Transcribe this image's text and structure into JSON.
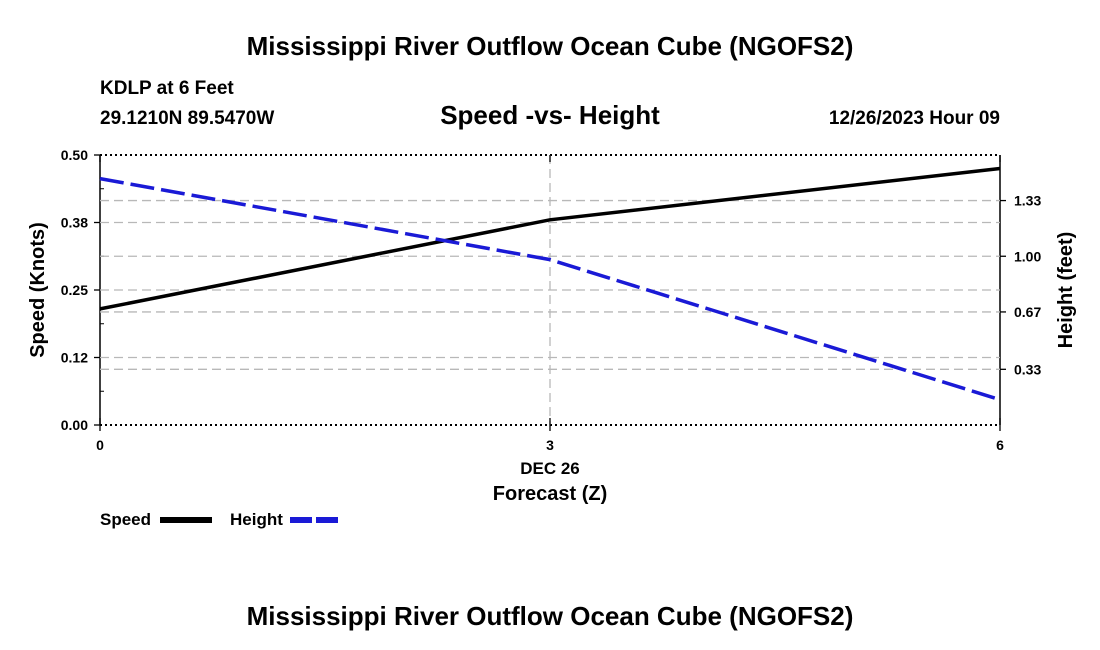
{
  "page": {
    "title": "Mississippi River Outflow Ocean Cube (NGOFS2)",
    "footer_title": "Mississippi River Outflow Ocean Cube (NGOFS2)",
    "station_line": "KDLP at 6 Feet",
    "coord_line": "29.1210N  89.5470W",
    "date_line": "12/26/2023 Hour 09"
  },
  "chart_data": {
    "type": "line",
    "title": "Speed -vs- Height",
    "xlabel": "Forecast (Z)",
    "x_date_label": "DEC 26",
    "x": [
      0,
      3,
      6
    ],
    "x_tick_labels": [
      "0",
      "3",
      "6"
    ],
    "xlim": [
      0,
      6
    ],
    "left_axis": {
      "label": "Speed (Knots)",
      "ylim": [
        0,
        0.5
      ],
      "ticks": [
        0,
        0.125,
        0.25,
        0.375,
        0.5
      ],
      "tick_labels": [
        "0.00",
        "0.12",
        "0.25",
        "0.38",
        "0.50"
      ]
    },
    "right_axis": {
      "label": "Height (feet)",
      "ylim": [
        0.0,
        1.6
      ],
      "ticks": [
        0.33,
        0.67,
        1.0,
        1.33
      ],
      "tick_labels": [
        "0.33",
        "0.67",
        "1.00",
        "1.33"
      ]
    },
    "grid": true,
    "series": [
      {
        "name": "Speed",
        "axis": "left",
        "values": [
          0.215,
          0.38,
          0.475
        ],
        "color": "#000000",
        "dash": "solid"
      },
      {
        "name": "Height",
        "axis": "right",
        "values": [
          1.46,
          0.98,
          0.15
        ],
        "color": "#1a1ad6",
        "dash": "dashed"
      }
    ],
    "legend": [
      {
        "label": "Speed",
        "color": "#000000",
        "dash": "solid"
      },
      {
        "label": "Height",
        "color": "#1a1ad6",
        "dash": "dashed"
      }
    ],
    "legend_position": "bottom-left"
  }
}
